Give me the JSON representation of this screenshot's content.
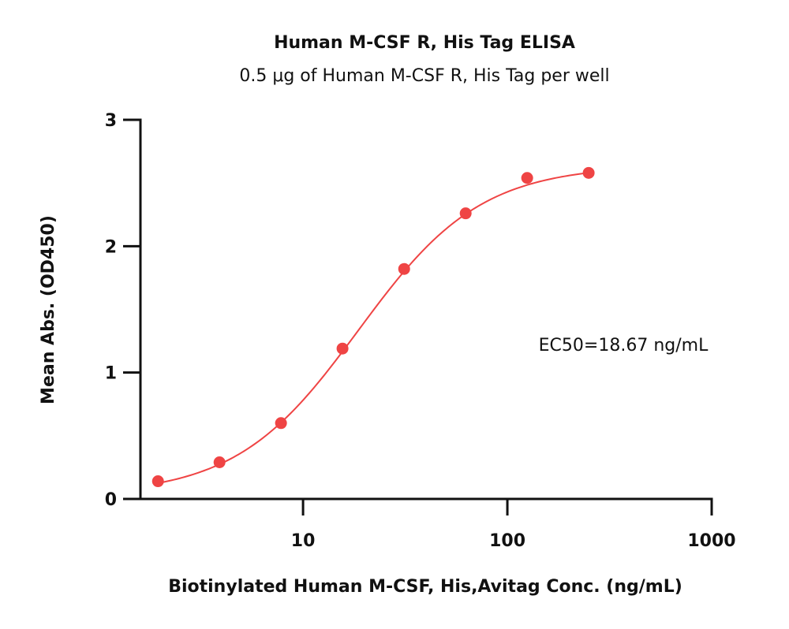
{
  "chart_data": {
    "type": "scatter",
    "title": "Human M-CSF R, His Tag ELISA",
    "subtitle": "0.5 μg of Human M-CSF R, His Tag per well",
    "xlabel": "Biotinylated Human M-CSF, His,Avitag Conc. (ng/mL)",
    "ylabel": "Mean Abs. (OD450)",
    "x_scale": "log",
    "xlim": [
      1.6,
      1000
    ],
    "ylim": [
      0,
      3
    ],
    "x_ticks": [
      {
        "value": 10,
        "label": "10"
      },
      {
        "value": 100,
        "label": "100"
      },
      {
        "value": 1000,
        "label": "1000"
      }
    ],
    "y_ticks": [
      {
        "value": 0,
        "label": "0"
      },
      {
        "value": 1,
        "label": "1"
      },
      {
        "value": 2,
        "label": "2"
      },
      {
        "value": 3,
        "label": "3"
      }
    ],
    "grid": false,
    "legend": "none",
    "annotation": "EC50=18.67 ng/mL",
    "series": [
      {
        "points": [
          {
            "x": 1.95,
            "y": 0.14
          },
          {
            "x": 3.9,
            "y": 0.29
          },
          {
            "x": 7.8,
            "y": 0.6
          },
          {
            "x": 15.6,
            "y": 1.19
          },
          {
            "x": 31.25,
            "y": 1.82
          },
          {
            "x": 62.5,
            "y": 2.26
          },
          {
            "x": 125,
            "y": 2.54
          },
          {
            "x": 250,
            "y": 2.58
          }
        ],
        "fit": {
          "model": "4PL",
          "bottom": 0.03,
          "top": 2.64,
          "ec50": 18.67,
          "hill": 1.45,
          "x_from": 1.95,
          "x_to": 250
        }
      }
    ],
    "colors": {
      "series": "#ef4444",
      "axis": "#111111"
    }
  }
}
